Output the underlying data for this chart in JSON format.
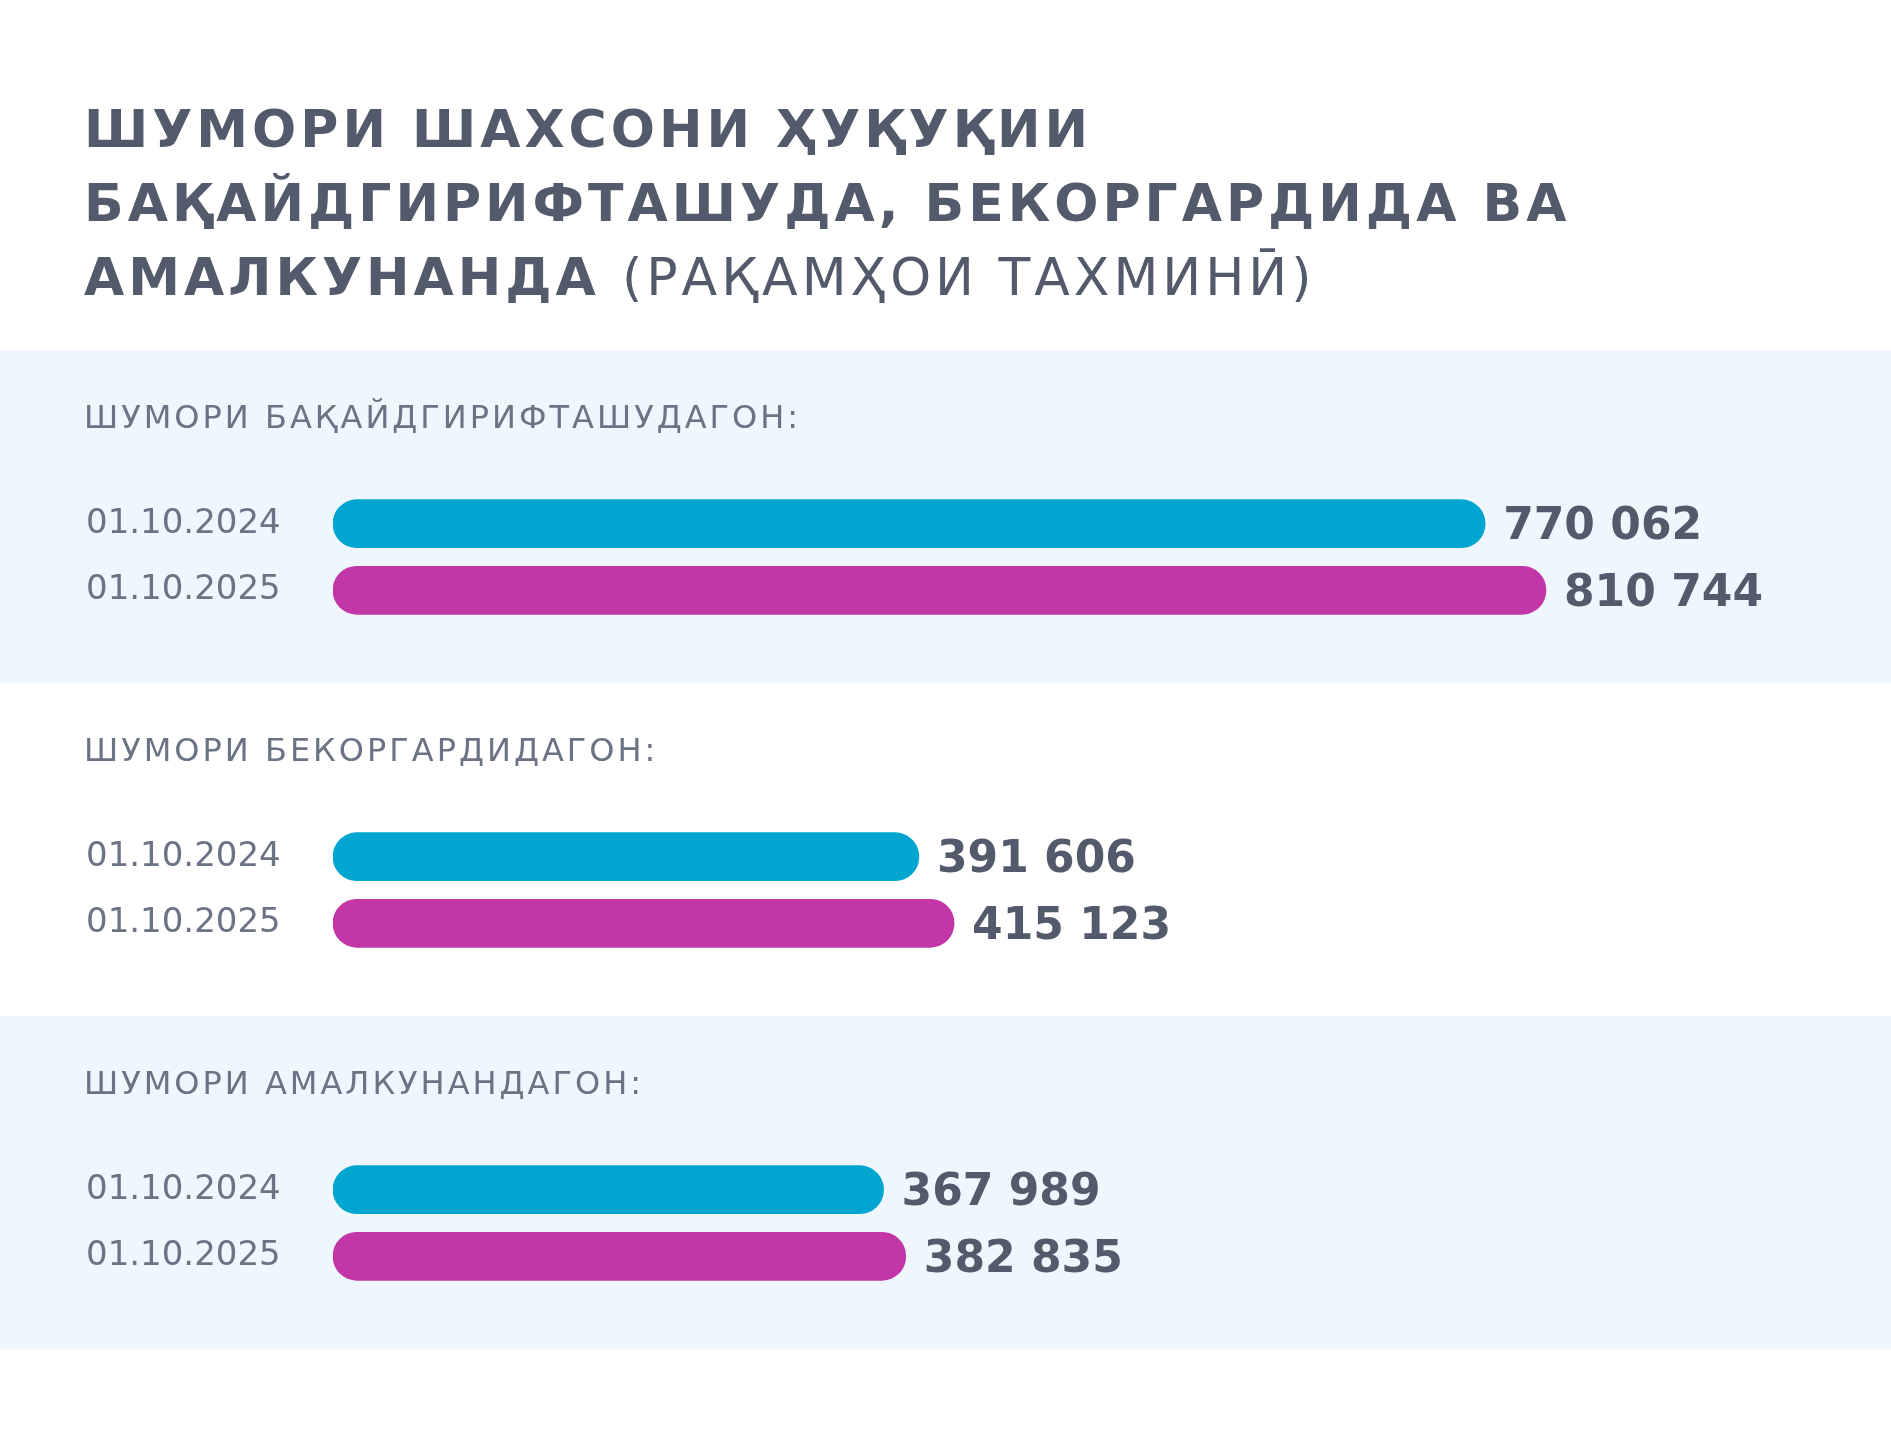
{
  "chart_data": [
    {
      "type": "other",
      "title": "ШУМОРИ ШАХСОНИ ҲУҚУҚИИ БАҚАЙДГИРИФТАШУДА, БЕКОРГАРДИДА ВА АМАЛКУНАНДА",
      "subtitle": "(РАҚАМҲОИ ТАХМИНӢ)"
    },
    {
      "type": "bar",
      "orientation": "horizontal",
      "title": "ШУМОРИ БАҚАЙДГИРИФТАШУДАГОН:",
      "categories": [
        "01.10.2024",
        "01.10.2025"
      ],
      "values": [
        770062,
        810744
      ],
      "colors": [
        "#00a6d0",
        "#c236a8"
      ],
      "value_labels": [
        "770 062",
        "810 744"
      ],
      "tick_labels": "y"
    },
    {
      "type": "bar",
      "orientation": "horizontal",
      "title": "ШУМОРИ БЕКОРГАРДИДАГОН:",
      "categories": [
        "01.10.2024",
        "01.10.2025"
      ],
      "values": [
        391606,
        415123
      ],
      "colors": [
        "#00a6d0",
        "#c236a8"
      ],
      "value_labels": [
        "391 606",
        "415 123"
      ],
      "tick_labels": "y"
    },
    {
      "type": "bar",
      "orientation": "horizontal",
      "title": "ШУМОРИ АМАЛКУНАНДАГОН:",
      "categories": [
        "01.10.2024",
        "01.10.2025"
      ],
      "values": [
        367989,
        382835
      ],
      "colors": [
        "#00a6d0",
        "#c236a8"
      ],
      "value_labels": [
        "367 989",
        "382 835"
      ],
      "tick_labels": "y"
    }
  ]
}
